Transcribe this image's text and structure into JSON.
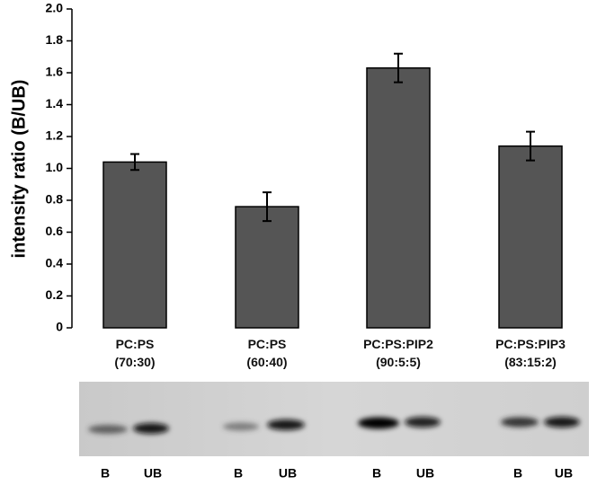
{
  "chart_data": {
    "type": "bar",
    "y_label": "intensity ratio (B/UB)",
    "categories": [
      "PC:PS\n(70:30)",
      "PC:PS\n(60:40)",
      "PC:PS:PIP2\n(90:5:5)",
      "PC:PS:PIP3\n(83:15:2)"
    ],
    "values": [
      1.04,
      0.76,
      1.63,
      1.14
    ],
    "errors": [
      0.05,
      0.09,
      0.09,
      0.09
    ],
    "color": "#555555",
    "ylim": [
      0,
      2
    ],
    "yticks": [
      0,
      0.2,
      0.4,
      0.6,
      0.8,
      {
        "value": 1,
        "label": "1.0"
      },
      1.2,
      1.4,
      1.6,
      1.8,
      {
        "value": 2,
        "label": "2.0"
      }
    ]
  },
  "gel": {
    "lane_labels": [
      "B",
      "UB",
      "B",
      "UB",
      "B",
      "UB",
      "B",
      "UB"
    ]
  }
}
